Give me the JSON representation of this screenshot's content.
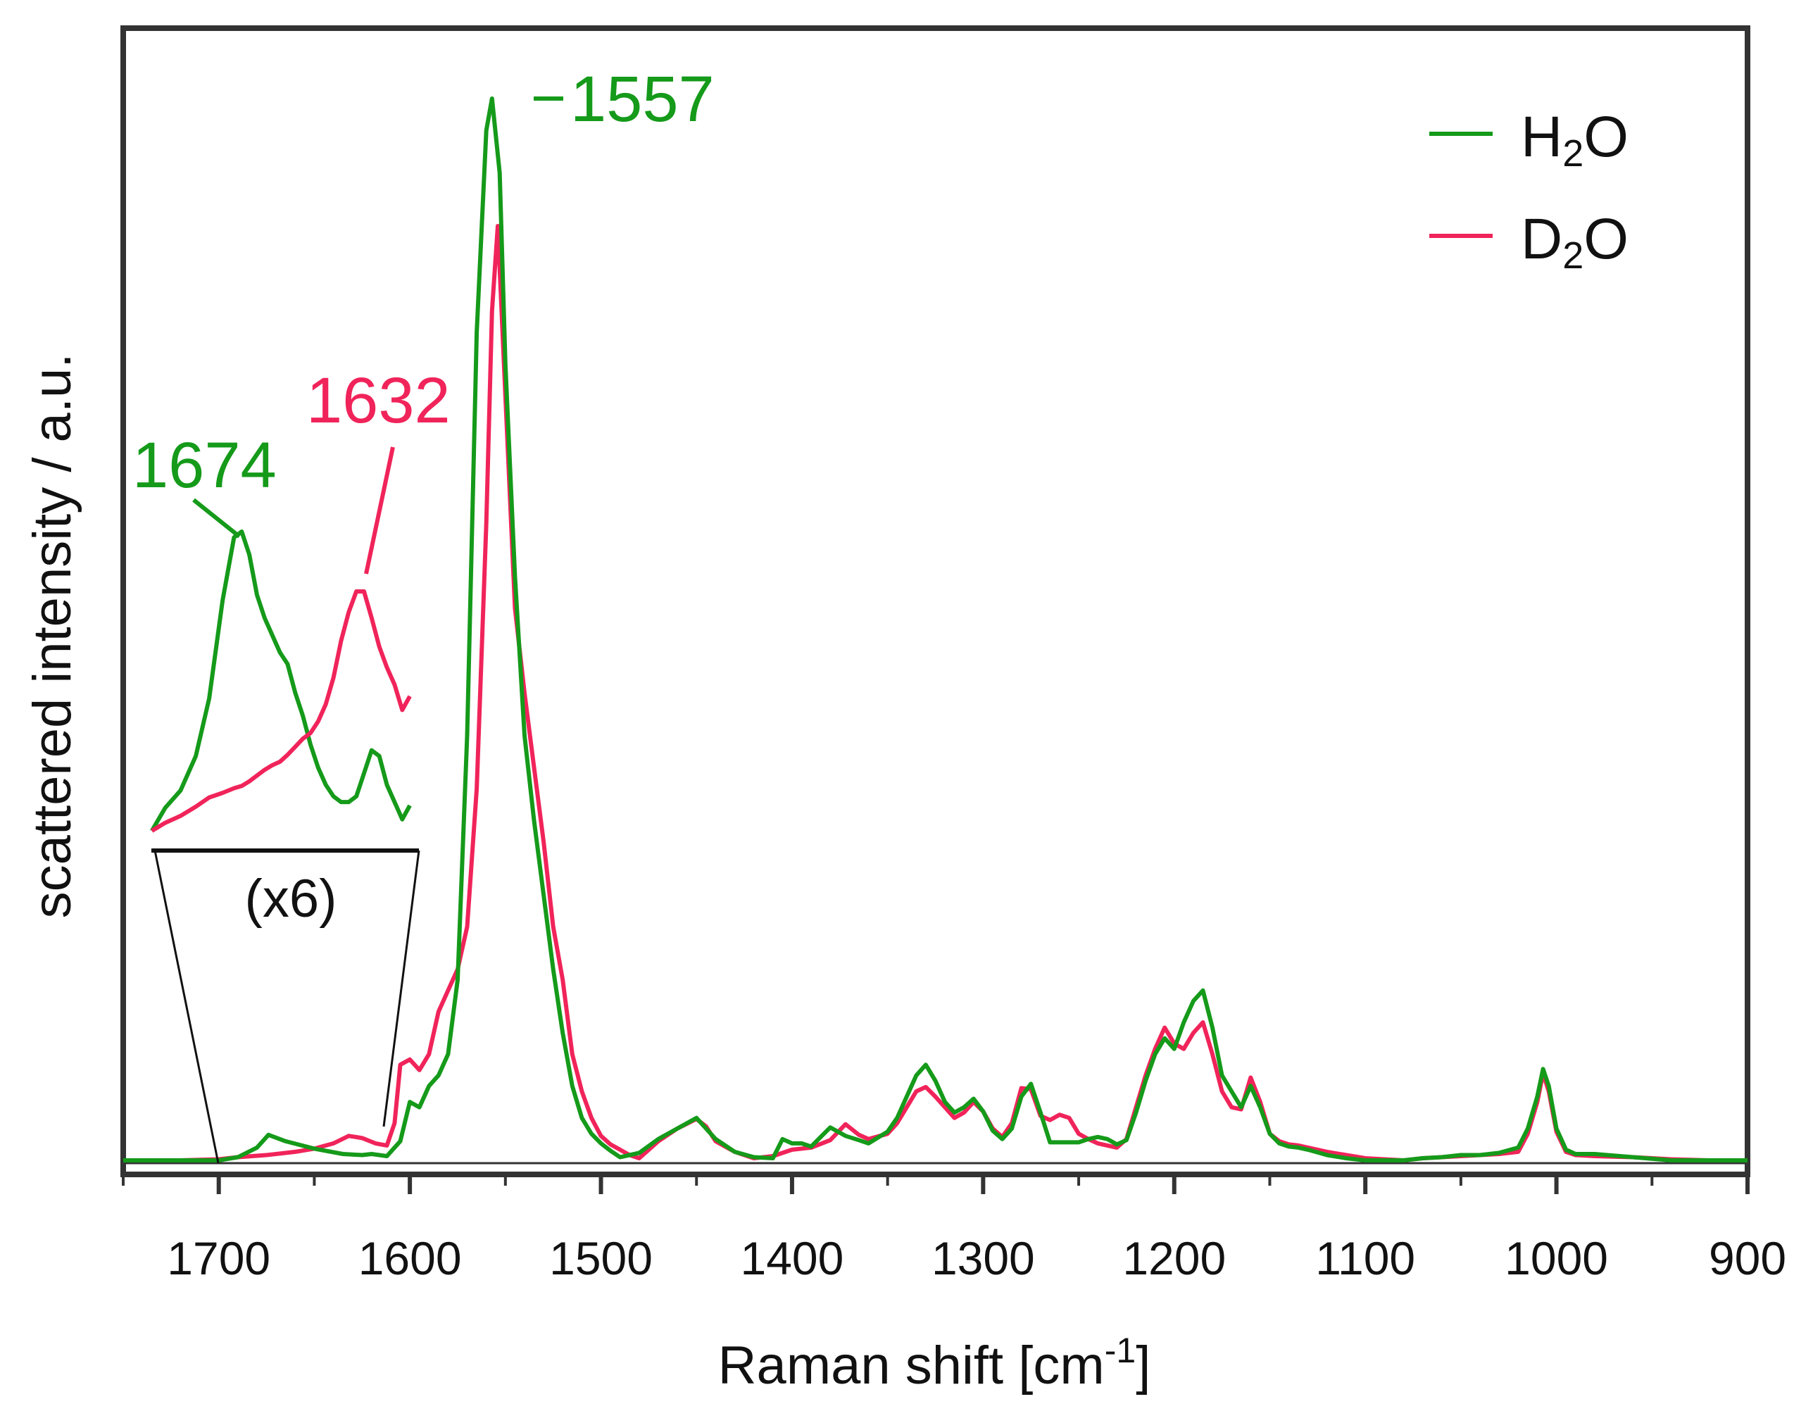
{
  "chart_data": {
    "type": "line",
    "title": "",
    "xlabel": "Raman shift [cm",
    "xlabel_sup": "-1",
    "xlabel_suffix": "]",
    "ylabel": "scattered intensity / a.u.",
    "xlim": [
      1750,
      900
    ],
    "ylim": [
      0,
      100
    ],
    "x_reversed": true,
    "x_ticks": [
      1700,
      1600,
      1500,
      1400,
      1300,
      1200,
      1100,
      1000,
      900
    ],
    "y_ticks_shown": false,
    "grid": false,
    "legend_position": "top-right",
    "colors": {
      "H2O": "#159a1a",
      "D2O": "#f0245a",
      "axis": "#333333"
    },
    "series": [
      {
        "name": "H2O",
        "legend_base": "H",
        "legend_sub": "2",
        "legend_tail": "O",
        "color": "#159a1a",
        "x": [
          1750,
          1720,
          1700,
          1690,
          1680,
          1674,
          1665,
          1650,
          1635,
          1625,
          1620,
          1612,
          1605,
          1600,
          1595,
          1590,
          1585,
          1580,
          1575,
          1570,
          1565,
          1560,
          1557,
          1553,
          1550,
          1545,
          1540,
          1535,
          1530,
          1525,
          1520,
          1515,
          1510,
          1505,
          1500,
          1495,
          1490,
          1480,
          1470,
          1460,
          1450,
          1445,
          1440,
          1430,
          1420,
          1410,
          1405,
          1400,
          1395,
          1390,
          1380,
          1372,
          1365,
          1360,
          1350,
          1345,
          1340,
          1335,
          1330,
          1325,
          1320,
          1315,
          1310,
          1305,
          1300,
          1295,
          1290,
          1285,
          1280,
          1275,
          1270,
          1265,
          1260,
          1255,
          1250,
          1245,
          1240,
          1235,
          1230,
          1225,
          1220,
          1215,
          1210,
          1205,
          1200,
          1195,
          1190,
          1185,
          1180,
          1175,
          1170,
          1165,
          1160,
          1155,
          1150,
          1145,
          1140,
          1135,
          1130,
          1120,
          1110,
          1100,
          1090,
          1080,
          1070,
          1060,
          1050,
          1040,
          1030,
          1020,
          1015,
          1010,
          1007,
          1004,
          1000,
          995,
          990,
          980,
          960,
          940,
          920,
          900
        ],
        "y": [
          0,
          0,
          0,
          0.3,
          1.2,
          2.4,
          1.8,
          1.1,
          0.6,
          0.5,
          0.6,
          0.4,
          1.8,
          5.5,
          5,
          7,
          8,
          10,
          17,
          40,
          78,
          97,
          100,
          93,
          75,
          55,
          40,
          32,
          25,
          18,
          12,
          7,
          4,
          2.5,
          1.6,
          0.9,
          0.3,
          0.7,
          2,
          3,
          4,
          3,
          2,
          0.8,
          0.3,
          0.2,
          2,
          1.6,
          1.6,
          1.3,
          3.1,
          2.3,
          1.9,
          1.6,
          2.7,
          4,
          6,
          8,
          9,
          7.5,
          5.5,
          4.5,
          5,
          5.8,
          4.6,
          2.8,
          2,
          3,
          6,
          7.2,
          4.5,
          1.7,
          1.7,
          1.7,
          1.7,
          2,
          2.2,
          2,
          1.5,
          1.9,
          4.5,
          7.5,
          10,
          11.5,
          10.5,
          13,
          15,
          16,
          12.5,
          8,
          6.5,
          5,
          7,
          5,
          2.5,
          1.6,
          1.3,
          1.2,
          1,
          0.5,
          0.2,
          0,
          0,
          0,
          0.2,
          0.3,
          0.5,
          0.5,
          0.7,
          1.2,
          3,
          6,
          8.6,
          7,
          3,
          1,
          0.6,
          0.6,
          0.3,
          0,
          0,
          0
        ]
      },
      {
        "name": "D2O",
        "legend_base": "D",
        "legend_sub": "2",
        "legend_tail": "O",
        "color": "#f0245a",
        "x": [
          1750,
          1720,
          1700,
          1690,
          1675,
          1660,
          1650,
          1640,
          1632,
          1625,
          1618,
          1612,
          1608,
          1605,
          1600,
          1595,
          1590,
          1585,
          1580,
          1575,
          1570,
          1565,
          1560,
          1557,
          1554,
          1550,
          1545,
          1540,
          1535,
          1530,
          1525,
          1520,
          1515,
          1510,
          1505,
          1500,
          1495,
          1490,
          1485,
          1480,
          1470,
          1460,
          1450,
          1445,
          1440,
          1430,
          1420,
          1410,
          1400,
          1390,
          1380,
          1372,
          1365,
          1360,
          1350,
          1345,
          1340,
          1335,
          1330,
          1325,
          1320,
          1315,
          1310,
          1305,
          1300,
          1295,
          1290,
          1285,
          1280,
          1275,
          1270,
          1265,
          1260,
          1255,
          1250,
          1245,
          1240,
          1235,
          1230,
          1225,
          1220,
          1215,
          1210,
          1205,
          1200,
          1195,
          1190,
          1185,
          1180,
          1175,
          1170,
          1165,
          1160,
          1155,
          1150,
          1145,
          1140,
          1135,
          1130,
          1120,
          1110,
          1100,
          1090,
          1080,
          1070,
          1060,
          1050,
          1040,
          1030,
          1020,
          1015,
          1010,
          1007,
          1004,
          1000,
          995,
          990,
          980,
          960,
          940,
          920,
          900
        ],
        "y": [
          0,
          0,
          0.1,
          0.3,
          0.5,
          0.8,
          1.1,
          1.6,
          2.3,
          2.1,
          1.6,
          1.4,
          3.5,
          9,
          9.5,
          8.5,
          10,
          14,
          16,
          18,
          22,
          35,
          60,
          80,
          88,
          72,
          52,
          44,
          37,
          30,
          22,
          17,
          10,
          6.5,
          4,
          2.3,
          1.5,
          1,
          0.5,
          0.2,
          1.8,
          3,
          3.9,
          3.2,
          1.8,
          0.8,
          0.2,
          0.4,
          1,
          1.2,
          1.9,
          3.4,
          2.4,
          2,
          2.5,
          3.5,
          5,
          6.5,
          6.9,
          6,
          5,
          4,
          4.5,
          5.5,
          4.6,
          3,
          2.2,
          3.5,
          6.8,
          6.7,
          4.2,
          3.8,
          4.3,
          4,
          2.5,
          2,
          1.6,
          1.4,
          1.2,
          2,
          5,
          8,
          10.5,
          12.5,
          11,
          10.5,
          12,
          13,
          10,
          6.5,
          5,
          4.8,
          7.8,
          5.5,
          2.5,
          1.8,
          1.5,
          1.4,
          1.2,
          0.8,
          0.5,
          0.2,
          0.1,
          0,
          0.2,
          0.3,
          0.4,
          0.5,
          0.6,
          0.8,
          2.5,
          5.5,
          8.2,
          6.5,
          2.7,
          0.8,
          0.5,
          0.4,
          0.3,
          0.1,
          0,
          0
        ]
      }
    ],
    "inset": {
      "label": "(x6)",
      "x_range": [
        1735,
        1600
      ],
      "series": [
        {
          "name": "H2O",
          "x": [
            1735,
            1728,
            1720,
            1712,
            1705,
            1698,
            1692,
            1688,
            1684,
            1680,
            1676,
            1672,
            1668,
            1664,
            1660,
            1656,
            1652,
            1648,
            1644,
            1640,
            1636,
            1632,
            1628,
            1624,
            1620,
            1616,
            1612,
            1608,
            1604,
            1600
          ],
          "y": [
            0,
            2,
            3.5,
            6.5,
            11.5,
            20,
            25.5,
            26,
            24,
            20.5,
            18.5,
            17,
            15.5,
            14.5,
            12,
            10,
            7.5,
            5.5,
            4,
            3,
            2.5,
            2.5,
            3,
            5,
            7,
            6.5,
            4,
            2.5,
            1,
            2.2
          ]
        },
        {
          "name": "D2O",
          "x": [
            1735,
            1728,
            1720,
            1712,
            1705,
            1698,
            1692,
            1688,
            1684,
            1680,
            1676,
            1672,
            1668,
            1664,
            1660,
            1656,
            1652,
            1648,
            1644,
            1640,
            1636,
            1632,
            1628,
            1624,
            1620,
            1616,
            1612,
            1608,
            1604,
            1600
          ],
          "y": [
            0,
            0.7,
            1.3,
            2.1,
            2.9,
            3.3,
            3.7,
            3.9,
            4.3,
            4.8,
            5.3,
            5.7,
            6,
            6.6,
            7.3,
            8,
            8.5,
            9.5,
            11,
            13.3,
            16.5,
            19,
            20.8,
            20.8,
            18.5,
            16,
            14.2,
            12.7,
            10.5,
            11.7
          ]
        }
      ]
    },
    "annotations": [
      {
        "text": "1557",
        "series": "H2O",
        "x": 1557
      },
      {
        "text": "1674",
        "series": "H2O",
        "x": 1674
      },
      {
        "text": "1632",
        "series": "D2O",
        "x": 1632
      }
    ]
  }
}
